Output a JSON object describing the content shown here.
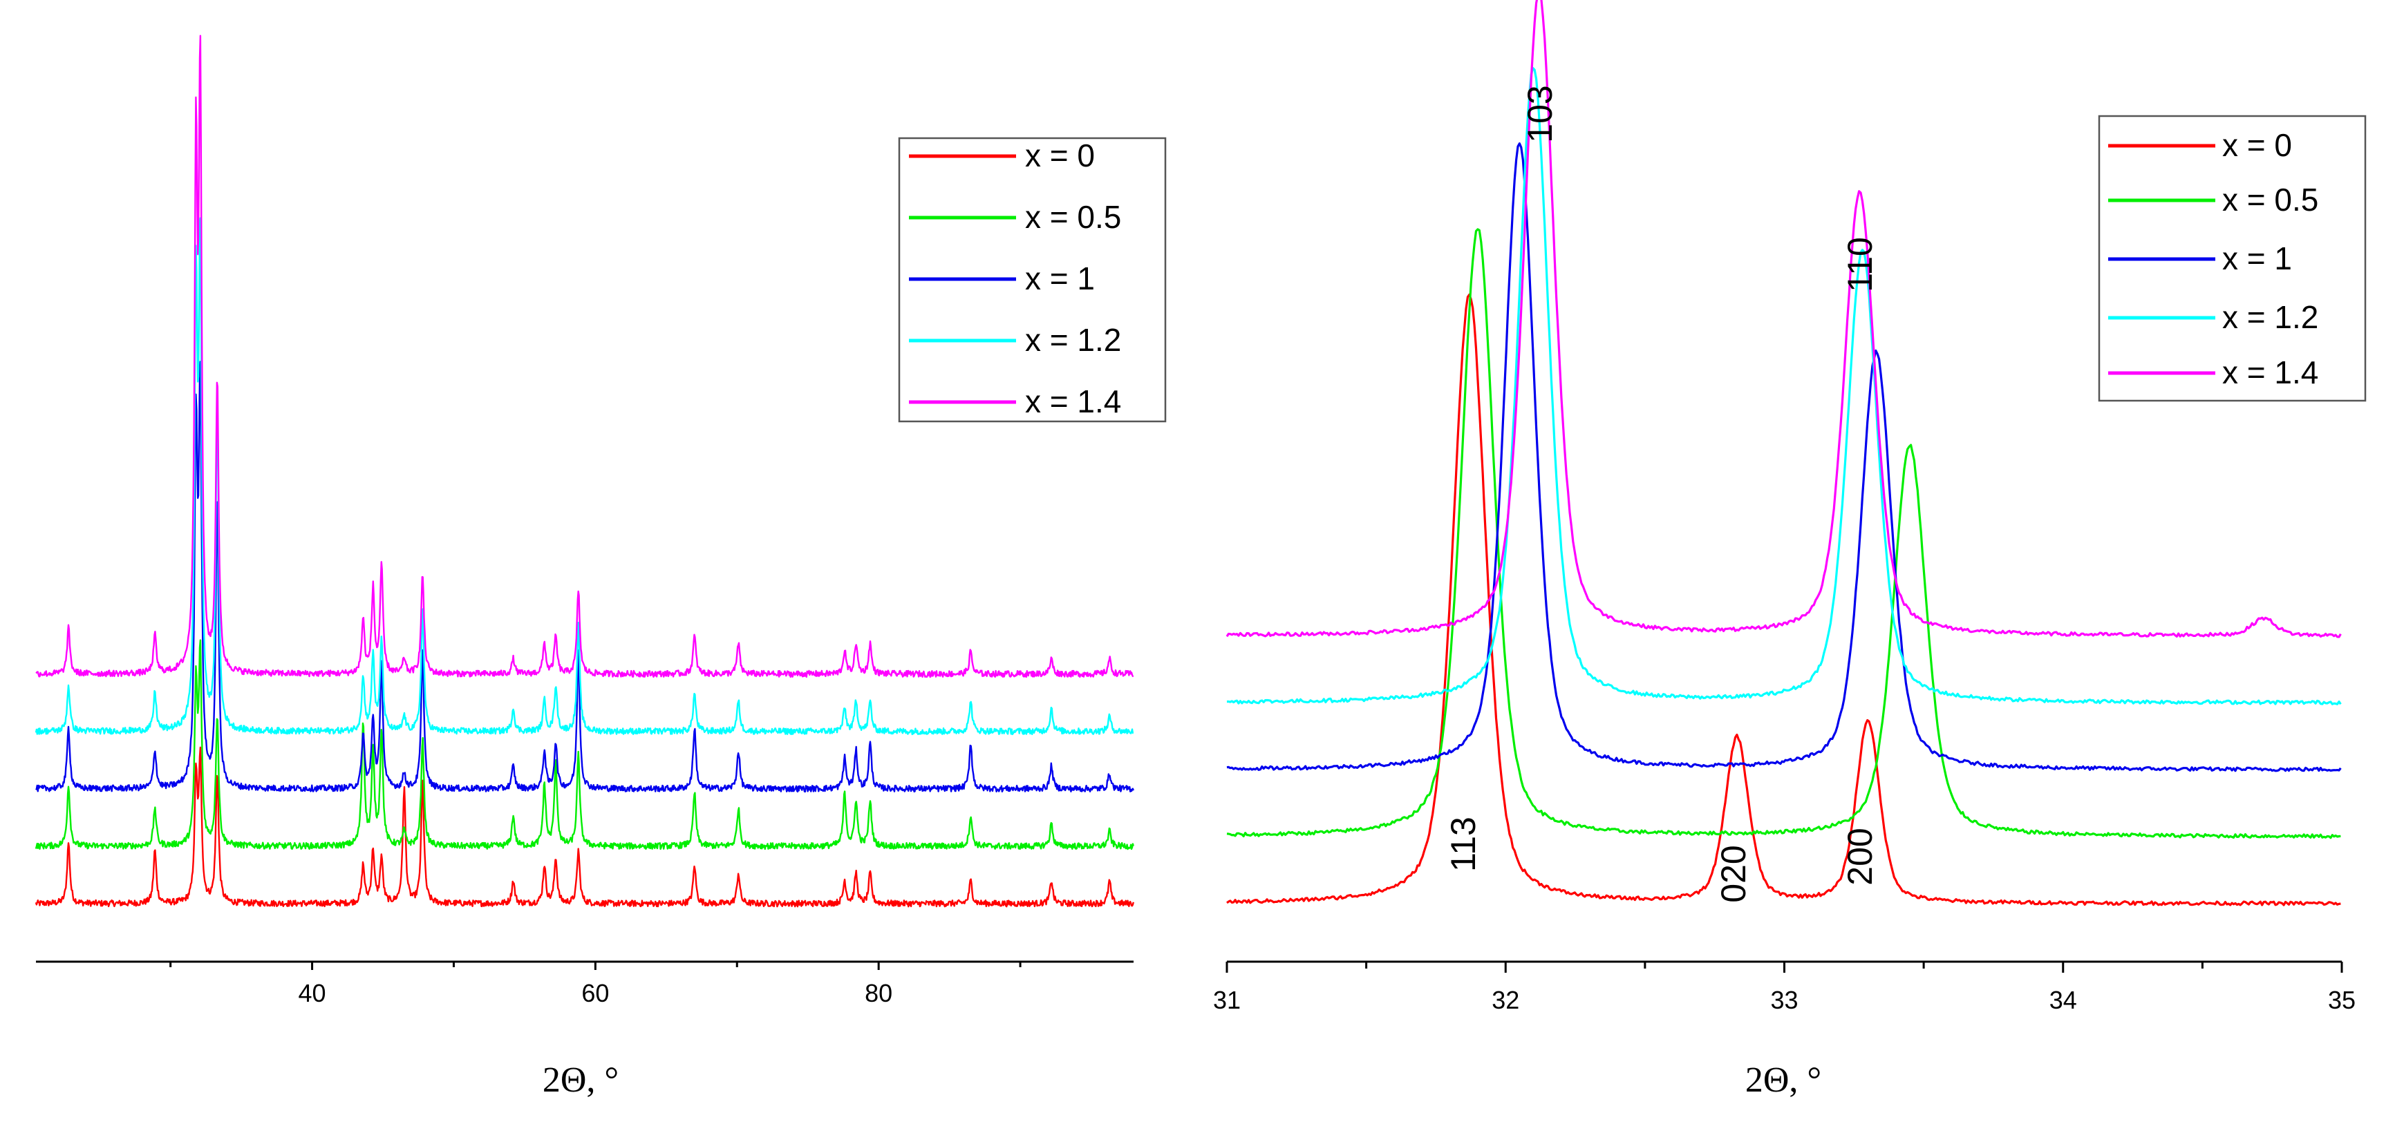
{
  "colors": {
    "x0": "#ff0000",
    "x05": "#00ee00",
    "x1": "#0000ee",
    "x12": "#00ffff",
    "x14": "#ff00ff"
  },
  "chart_data": [
    {
      "type": "line",
      "title": "",
      "xlabel": "2Θ, °",
      "ylabel": "",
      "xlim": [
        20.5,
        98
      ],
      "xticks": [
        40,
        60,
        80
      ],
      "xtick_labels": [
        "40",
        "60",
        "80"
      ],
      "ylim": [
        0,
        1
      ],
      "vertical_offset_between_series": 0.075,
      "legend_position": "top-right",
      "peaks_2theta": [
        22.8,
        28.9,
        31.8,
        32.1,
        33.3,
        43.6,
        44.3,
        44.9,
        46.5,
        47.8,
        54.2,
        56.4,
        57.2,
        58.8,
        67.0,
        70.1,
        77.6,
        78.4,
        79.4,
        86.5,
        92.2,
        96.3
      ],
      "series": [
        {
          "name": "x = 0",
          "color_key": "x0",
          "offset": 0.0,
          "peak_heights": [
            0.08,
            0.07,
            0.16,
            0.18,
            0.17,
            0.05,
            0.07,
            0.06,
            0.15,
            0.16,
            0.03,
            0.05,
            0.06,
            0.07,
            0.05,
            0.04,
            0.03,
            0.04,
            0.04,
            0.03,
            0.03,
            0.03
          ]
        },
        {
          "name": "x = 0.5",
          "color_key": "x05",
          "offset": 0.075,
          "peak_heights": [
            0.08,
            0.05,
            0.2,
            0.24,
            0.17,
            0.16,
            0.12,
            0.15,
            0.02,
            0.14,
            0.04,
            0.08,
            0.11,
            0.12,
            0.07,
            0.05,
            0.07,
            0.06,
            0.06,
            0.04,
            0.03,
            0.02
          ]
        },
        {
          "name": "x = 1",
          "color_key": "x1",
          "offset": 0.15,
          "peak_heights": [
            0.08,
            0.05,
            0.45,
            0.5,
            0.38,
            0.07,
            0.09,
            0.16,
            0.02,
            0.18,
            0.03,
            0.05,
            0.06,
            0.18,
            0.08,
            0.05,
            0.04,
            0.05,
            0.06,
            0.06,
            0.03,
            0.02
          ]
        },
        {
          "name": "x = 1.2",
          "color_key": "x12",
          "offset": 0.225,
          "peak_heights": [
            0.06,
            0.05,
            0.55,
            0.6,
            0.42,
            0.07,
            0.1,
            0.12,
            0.02,
            0.16,
            0.03,
            0.04,
            0.06,
            0.14,
            0.05,
            0.04,
            0.03,
            0.04,
            0.04,
            0.04,
            0.03,
            0.02
          ]
        },
        {
          "name": "x = 1.4",
          "color_key": "x14",
          "offset": 0.3,
          "peak_heights": [
            0.06,
            0.05,
            0.65,
            0.75,
            0.38,
            0.07,
            0.11,
            0.14,
            0.02,
            0.13,
            0.02,
            0.04,
            0.05,
            0.11,
            0.05,
            0.04,
            0.03,
            0.04,
            0.04,
            0.03,
            0.02,
            0.02
          ]
        }
      ]
    },
    {
      "type": "line",
      "title": "",
      "xlabel": "2Θ, °",
      "ylabel": "",
      "xlim": [
        31,
        35
      ],
      "xticks": [
        31,
        32,
        33,
        34,
        35
      ],
      "xtick_labels": [
        "31",
        "32",
        "33",
        "34",
        "35"
      ],
      "ylim": [
        0,
        1
      ],
      "legend_position": "top-right",
      "peak_annotations": [
        {
          "label": "103",
          "x": 32.12
        },
        {
          "label": "110",
          "x": 33.27
        },
        {
          "label": "113",
          "x": 31.87
        },
        {
          "label": "020",
          "x": 32.82
        },
        {
          "label": "200",
          "x": 33.3
        }
      ],
      "series": [
        {
          "name": "x = 0",
          "color_key": "x0",
          "baseline": 0.0,
          "peaks": [
            {
              "x": 31.87,
              "height": 0.7,
              "width": 0.07
            },
            {
              "x": 32.83,
              "height": 0.19,
              "width": 0.05
            },
            {
              "x": 33.3,
              "height": 0.21,
              "width": 0.05
            }
          ]
        },
        {
          "name": "x = 0.5",
          "color_key": "x05",
          "baseline": 0.077,
          "peaks": [
            {
              "x": 31.9,
              "height": 0.7,
              "width": 0.07
            },
            {
              "x": 33.45,
              "height": 0.45,
              "width": 0.07
            }
          ]
        },
        {
          "name": "x = 1",
          "color_key": "x1",
          "baseline": 0.154,
          "peaks": [
            {
              "x": 32.05,
              "height": 0.72,
              "width": 0.065
            },
            {
              "x": 33.33,
              "height": 0.48,
              "width": 0.065
            }
          ]
        },
        {
          "name": "x = 1.2",
          "color_key": "x12",
          "baseline": 0.231,
          "peaks": [
            {
              "x": 32.1,
              "height": 0.73,
              "width": 0.065
            },
            {
              "x": 33.28,
              "height": 0.52,
              "width": 0.065
            }
          ]
        },
        {
          "name": "x = 1.4",
          "color_key": "x14",
          "baseline": 0.308,
          "peaks": [
            {
              "x": 32.12,
              "height": 0.74,
              "width": 0.065
            },
            {
              "x": 33.27,
              "height": 0.51,
              "width": 0.065
            },
            {
              "x": 34.72,
              "height": 0.02,
              "width": 0.05
            }
          ]
        }
      ]
    }
  ]
}
